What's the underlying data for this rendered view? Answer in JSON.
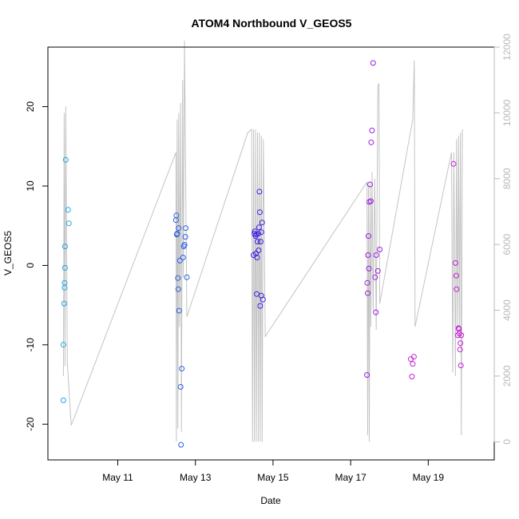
{
  "chart_data": {
    "type": "scatter",
    "title": "ATOM4 Northbound V_GEOS5",
    "xlabel": "Date",
    "ylabel": "V_GEOS5",
    "x_unit": "day-of-May",
    "xlim": [
      9.2,
      20.7
    ],
    "ylim": [
      -24.5,
      27.5
    ],
    "y_ticks": [
      -20,
      -10,
      0,
      10,
      20
    ],
    "x_ticks": [
      {
        "label": "May 11",
        "value": 11
      },
      {
        "label": "May 13",
        "value": 13
      },
      {
        "label": "May 15",
        "value": 15
      },
      {
        "label": "May 17",
        "value": 17
      },
      {
        "label": "May 19",
        "value": 19
      }
    ],
    "y2_ticks": [
      0,
      2000,
      4000,
      6000,
      8000,
      10000,
      12000
    ],
    "y2lim": [
      -550,
      12000
    ],
    "colors": {
      "line": "#c4c4c4",
      "right_axis": "#b8b8b8",
      "frame": "#000000"
    },
    "series": [
      {
        "color": "#1ea8e6",
        "points": [
          [
            9.6,
            -17
          ],
          [
            9.6,
            -10
          ],
          [
            9.62,
            -4.8
          ],
          [
            9.63,
            -2.8
          ],
          [
            9.63,
            -2.2
          ],
          [
            9.64,
            -0.3
          ],
          [
            9.64,
            2.4
          ],
          [
            9.66,
            13.3
          ],
          [
            9.72,
            7
          ],
          [
            9.74,
            5.3
          ]
        ]
      },
      {
        "color": "#2c5fe6",
        "points": [
          [
            12.5,
            5.7
          ],
          [
            12.51,
            6.3
          ],
          [
            12.52,
            3.9
          ],
          [
            12.53,
            4
          ],
          [
            12.55,
            -1.6
          ],
          [
            12.56,
            -3
          ],
          [
            12.57,
            4.7
          ],
          [
            12.58,
            -5.7
          ],
          [
            12.6,
            0.6
          ],
          [
            12.62,
            -15.3
          ],
          [
            12.63,
            -22.6
          ],
          [
            12.65,
            -13
          ],
          [
            12.68,
            1
          ],
          [
            12.7,
            2.4
          ],
          [
            12.72,
            2.6
          ],
          [
            12.74,
            3.6
          ],
          [
            12.75,
            4.7
          ],
          [
            12.78,
            -1.5
          ]
        ]
      },
      {
        "color": "#3b1fe0",
        "points": [
          [
            14.5,
            1.3
          ],
          [
            14.52,
            4
          ],
          [
            14.53,
            4.3
          ],
          [
            14.55,
            3.7
          ],
          [
            14.56,
            1.5
          ],
          [
            14.57,
            3.9
          ],
          [
            14.58,
            -3.6
          ],
          [
            14.59,
            1
          ],
          [
            14.6,
            3
          ],
          [
            14.62,
            4
          ],
          [
            14.63,
            1.9
          ],
          [
            14.64,
            4.8
          ],
          [
            14.65,
            9.3
          ],
          [
            14.66,
            6.7
          ],
          [
            14.67,
            -5.1
          ],
          [
            14.68,
            3
          ],
          [
            14.7,
            4.2
          ],
          [
            14.7,
            -3.8
          ],
          [
            14.72,
            5.4
          ],
          [
            14.74,
            -4.3
          ]
        ]
      },
      {
        "color": "#9a1fe0",
        "points": [
          [
            17.42,
            -13.8
          ],
          [
            17.43,
            -2.2
          ],
          [
            17.44,
            -3.5
          ],
          [
            17.45,
            1.3
          ],
          [
            17.46,
            3.7
          ],
          [
            17.47,
            -0.4
          ],
          [
            17.48,
            8
          ],
          [
            17.5,
            10.2
          ],
          [
            17.52,
            8.1
          ],
          [
            17.53,
            15.5
          ],
          [
            17.55,
            17
          ],
          [
            17.58,
            25.5
          ],
          [
            17.63,
            -1.5
          ],
          [
            17.65,
            -5.9
          ],
          [
            17.66,
            1.3
          ],
          [
            17.7,
            -0.7
          ],
          [
            17.75,
            2
          ]
        ]
      },
      {
        "color": "#c41fd4",
        "points": [
          [
            18.55,
            -11.8
          ],
          [
            18.58,
            -14
          ],
          [
            18.6,
            -12.4
          ],
          [
            18.63,
            -11.5
          ],
          [
            19.65,
            12.8
          ],
          [
            19.7,
            0.3
          ],
          [
            19.72,
            -1.3
          ],
          [
            19.73,
            -3
          ],
          [
            19.76,
            -8.8
          ],
          [
            19.78,
            -7.9
          ],
          [
            19.79,
            -8
          ],
          [
            19.8,
            -8.6
          ],
          [
            19.82,
            -10.6
          ],
          [
            19.83,
            -9.8
          ],
          [
            19.84,
            -12.6
          ],
          [
            19.85,
            -8.8
          ]
        ]
      }
    ],
    "secondary_line": {
      "points": [
        [
          9.6,
          2000
        ],
        [
          9.62,
          10000
        ],
        [
          9.64,
          2300
        ],
        [
          9.66,
          10200
        ],
        [
          9.7,
          2400
        ],
        [
          9.8,
          500
        ],
        [
          12.5,
          8800
        ],
        [
          12.51,
          0
        ],
        [
          12.53,
          9800
        ],
        [
          12.55,
          400
        ],
        [
          12.57,
          10000
        ],
        [
          12.59,
          3500
        ],
        [
          12.62,
          10300
        ],
        [
          12.64,
          300
        ],
        [
          12.67,
          11000
        ],
        [
          12.69,
          5000
        ],
        [
          12.72,
          12200
        ],
        [
          12.78,
          3800
        ],
        [
          14.35,
          9400
        ],
        [
          14.45,
          9500
        ],
        [
          14.47,
          0
        ],
        [
          14.5,
          9500
        ],
        [
          14.52,
          0
        ],
        [
          14.55,
          9500
        ],
        [
          14.57,
          0
        ],
        [
          14.6,
          9400
        ],
        [
          14.62,
          0
        ],
        [
          14.65,
          9400
        ],
        [
          14.67,
          0
        ],
        [
          14.7,
          9300
        ],
        [
          14.72,
          0
        ],
        [
          14.75,
          9200
        ],
        [
          14.8,
          3200
        ],
        [
          17.42,
          7900
        ],
        [
          17.44,
          200
        ],
        [
          17.46,
          7800
        ],
        [
          17.48,
          0
        ],
        [
          17.5,
          7900
        ],
        [
          17.52,
          3500
        ],
        [
          17.55,
          8200
        ],
        [
          17.58,
          4000
        ],
        [
          17.62,
          8000
        ],
        [
          17.66,
          3400
        ],
        [
          17.7,
          10800
        ],
        [
          17.73,
          10900
        ],
        [
          17.75,
          4200
        ],
        [
          18.6,
          9800
        ],
        [
          18.64,
          11600
        ],
        [
          18.66,
          3500
        ],
        [
          19.6,
          8800
        ],
        [
          19.63,
          2100
        ],
        [
          19.66,
          8800
        ],
        [
          19.7,
          2000
        ],
        [
          19.73,
          9200
        ],
        [
          19.75,
          3300
        ],
        [
          19.78,
          9300
        ],
        [
          19.8,
          3400
        ],
        [
          19.83,
          9400
        ],
        [
          19.85,
          200
        ],
        [
          19.88,
          9500
        ]
      ]
    }
  }
}
